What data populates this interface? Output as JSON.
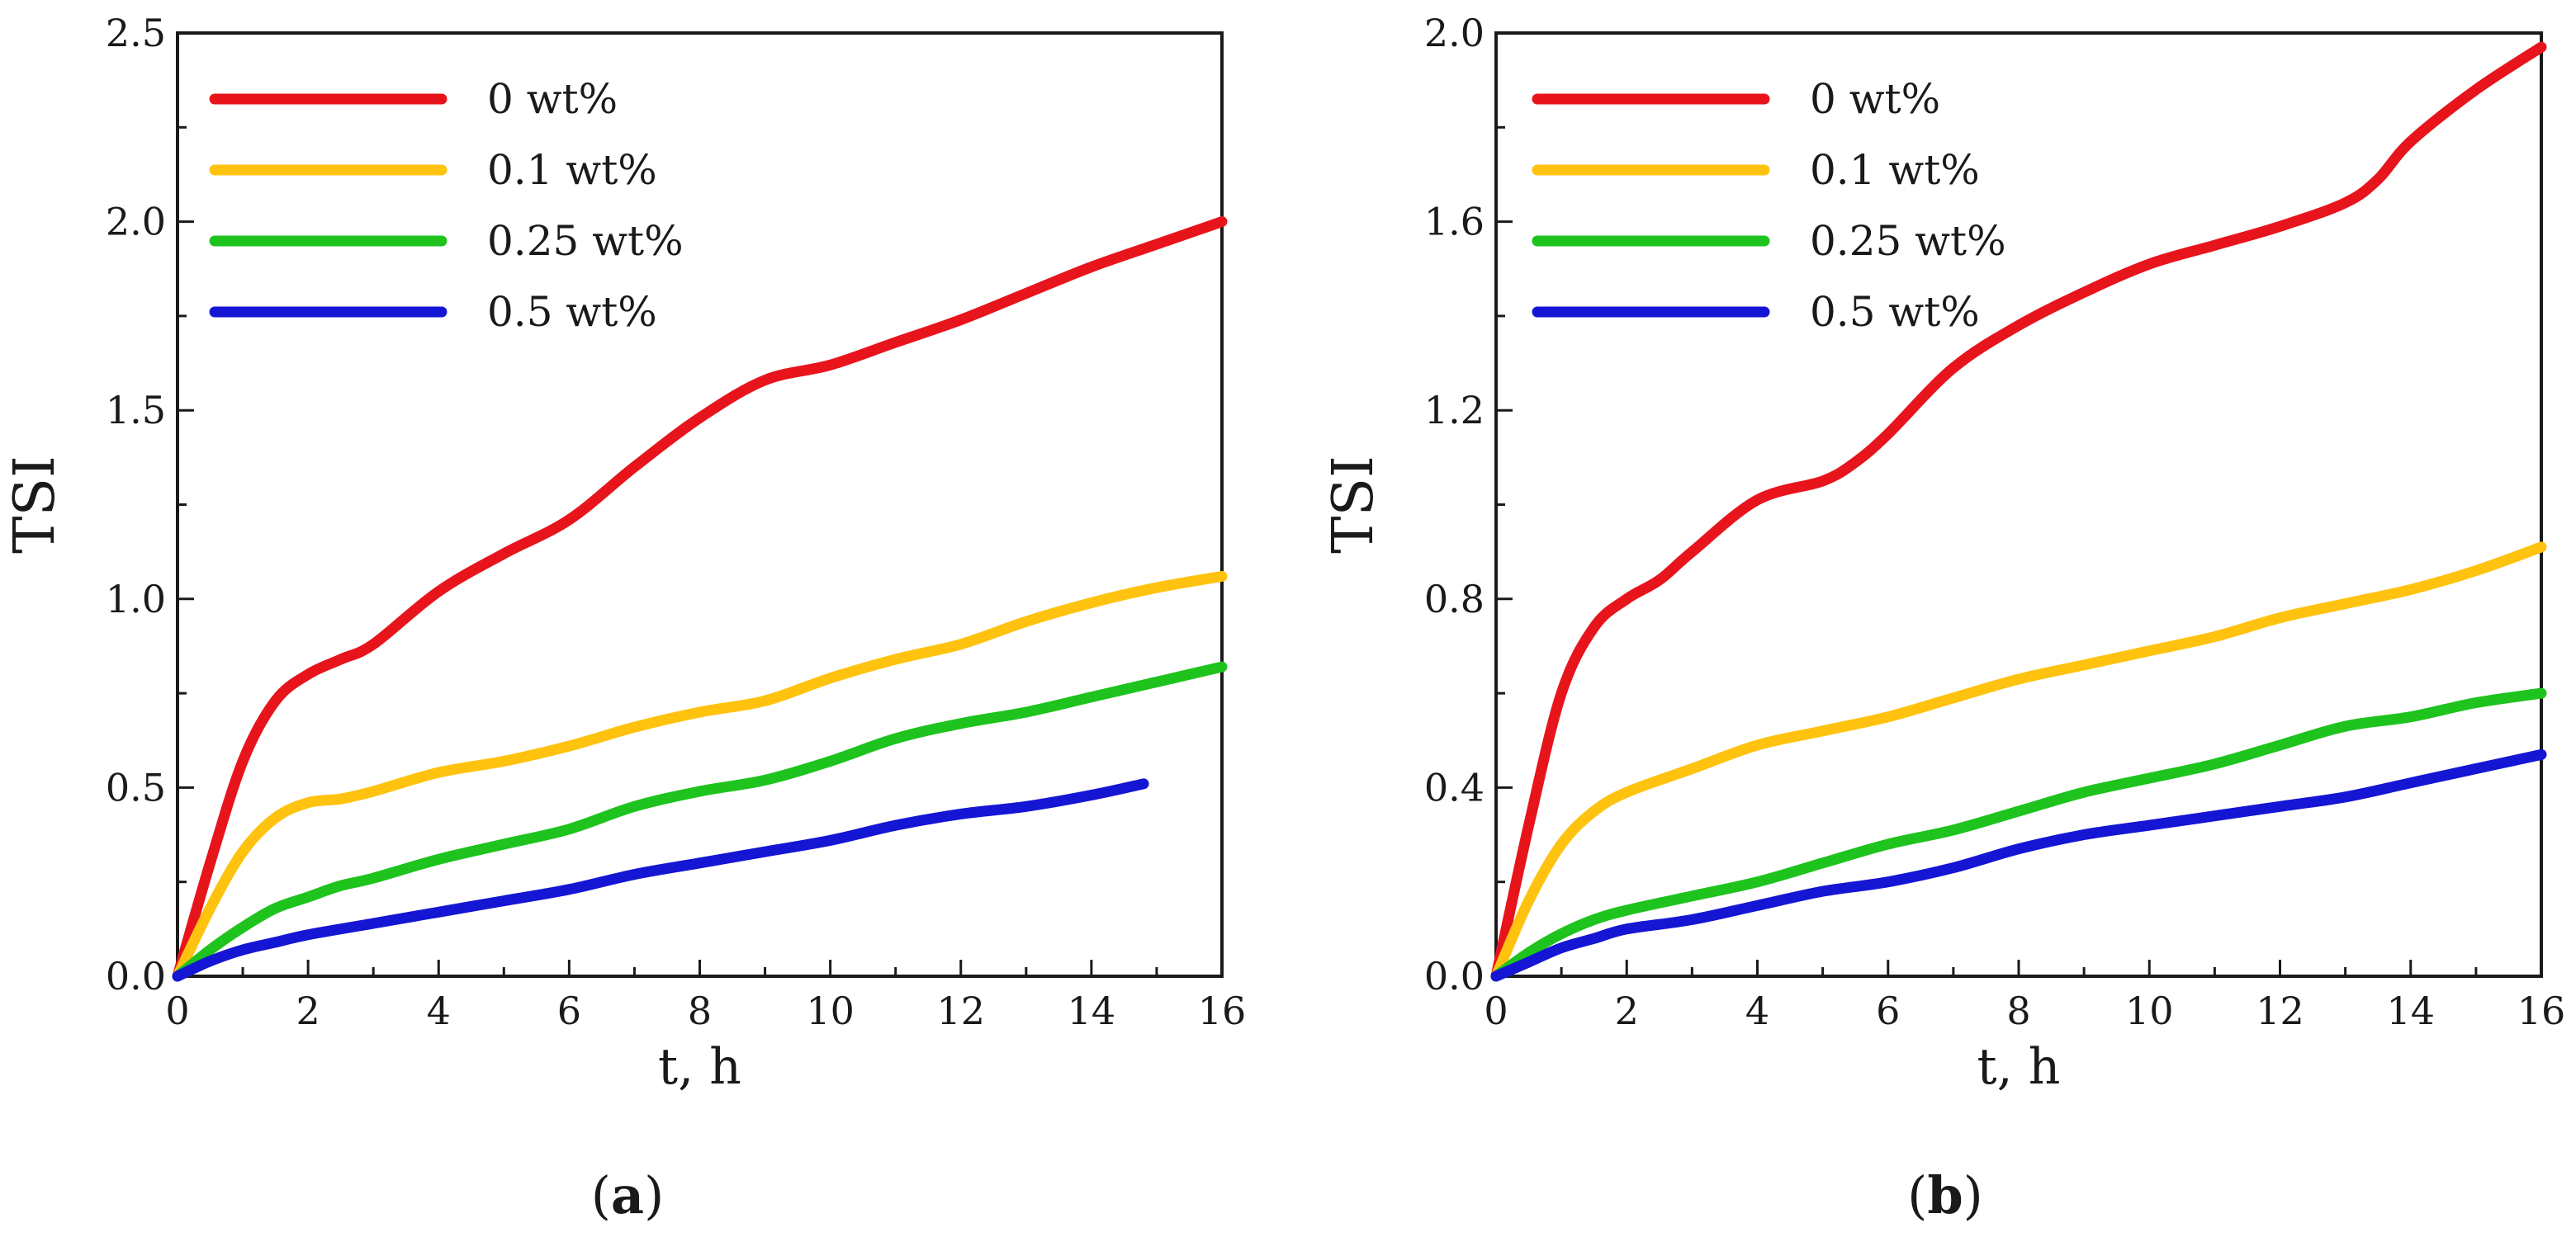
{
  "chart_data": [
    {
      "type": "line",
      "panel_label": "a",
      "xlabel": "t, h",
      "ylabel": "TSI",
      "xlim": [
        0,
        16
      ],
      "ylim": [
        0,
        2.5
      ],
      "xticks": [
        0,
        2,
        4,
        6,
        8,
        10,
        12,
        14,
        16
      ],
      "yticks": [
        "0.0",
        "0.5",
        "1.0",
        "1.5",
        "2.0",
        "2.5"
      ],
      "legend_position": "top-left",
      "series": [
        {
          "name": "0 wt%",
          "color": "#e8141c",
          "x": [
            0,
            0.5,
            1,
            1.5,
            2,
            2.5,
            3,
            4,
            5,
            6,
            7,
            8,
            9,
            10,
            11,
            12,
            13,
            14,
            15,
            16
          ],
          "y": [
            0,
            0.3,
            0.57,
            0.73,
            0.8,
            0.84,
            0.88,
            1.02,
            1.12,
            1.21,
            1.35,
            1.48,
            1.58,
            1.62,
            1.68,
            1.74,
            1.81,
            1.88,
            1.94,
            2.0
          ]
        },
        {
          "name": "0.1 wt%",
          "color": "#ffc20e",
          "x": [
            0,
            0.5,
            1,
            1.5,
            2,
            2.5,
            3,
            4,
            5,
            6,
            7,
            8,
            9,
            10,
            11,
            12,
            13,
            14,
            15,
            16
          ],
          "y": [
            0,
            0.18,
            0.33,
            0.42,
            0.46,
            0.47,
            0.49,
            0.54,
            0.57,
            0.61,
            0.66,
            0.7,
            0.73,
            0.79,
            0.84,
            0.88,
            0.94,
            0.99,
            1.03,
            1.06
          ]
        },
        {
          "name": "0.25 wt%",
          "color": "#1ec31e",
          "x": [
            0,
            0.5,
            1,
            1.5,
            2,
            2.5,
            3,
            4,
            5,
            6,
            7,
            8,
            9,
            10,
            11,
            12,
            13,
            14,
            15,
            16
          ],
          "y": [
            0,
            0.07,
            0.13,
            0.18,
            0.21,
            0.24,
            0.26,
            0.31,
            0.35,
            0.39,
            0.45,
            0.49,
            0.52,
            0.57,
            0.63,
            0.67,
            0.7,
            0.74,
            0.78,
            0.82
          ]
        },
        {
          "name": "0.5 wt%",
          "color": "#1515d4",
          "x": [
            0,
            0.5,
            1,
            1.5,
            2,
            3,
            4,
            5,
            6,
            7,
            8,
            9,
            10,
            11,
            12,
            13,
            14,
            14.8
          ],
          "y": [
            0,
            0.04,
            0.07,
            0.09,
            0.11,
            0.14,
            0.17,
            0.2,
            0.23,
            0.27,
            0.3,
            0.33,
            0.36,
            0.4,
            0.43,
            0.45,
            0.48,
            0.51
          ]
        }
      ]
    },
    {
      "type": "line",
      "panel_label": "b",
      "xlabel": "t, h",
      "ylabel": "TSI",
      "xlim": [
        0,
        16
      ],
      "ylim": [
        0,
        2.0
      ],
      "xticks": [
        0,
        2,
        4,
        6,
        8,
        10,
        12,
        14,
        16
      ],
      "yticks": [
        "0.0",
        "0.4",
        "0.8",
        "1.2",
        "1.6",
        "2.0"
      ],
      "legend_position": "top-left",
      "series": [
        {
          "name": "0 wt%",
          "color": "#e8141c",
          "x": [
            0,
            0.5,
            1,
            1.5,
            2,
            2.5,
            3,
            4,
            5,
            5.5,
            6,
            7,
            8,
            9,
            10,
            11,
            12,
            13,
            13.5,
            14,
            15,
            16
          ],
          "y": [
            0,
            0.32,
            0.6,
            0.74,
            0.8,
            0.84,
            0.9,
            1.01,
            1.05,
            1.09,
            1.15,
            1.29,
            1.38,
            1.45,
            1.51,
            1.55,
            1.59,
            1.64,
            1.69,
            1.77,
            1.88,
            1.97
          ]
        },
        {
          "name": "0.1 wt%",
          "color": "#ffc20e",
          "x": [
            0,
            0.5,
            1,
            1.5,
            2,
            3,
            4,
            5,
            6,
            7,
            8,
            9,
            10,
            11,
            12,
            13,
            14,
            15,
            16
          ],
          "y": [
            0,
            0.16,
            0.28,
            0.35,
            0.39,
            0.44,
            0.49,
            0.52,
            0.55,
            0.59,
            0.63,
            0.66,
            0.69,
            0.72,
            0.76,
            0.79,
            0.82,
            0.86,
            0.91
          ]
        },
        {
          "name": "0.25 wt%",
          "color": "#1ec31e",
          "x": [
            0,
            0.5,
            1,
            1.5,
            2,
            3,
            4,
            5,
            6,
            7,
            8,
            9,
            10,
            11,
            12,
            13,
            14,
            15,
            16
          ],
          "y": [
            0,
            0.05,
            0.09,
            0.12,
            0.14,
            0.17,
            0.2,
            0.24,
            0.28,
            0.31,
            0.35,
            0.39,
            0.42,
            0.45,
            0.49,
            0.53,
            0.55,
            0.58,
            0.6
          ]
        },
        {
          "name": "0.5 wt%",
          "color": "#1515d4",
          "x": [
            0,
            0.5,
            1,
            1.5,
            2,
            3,
            4,
            5,
            6,
            7,
            8,
            9,
            10,
            11,
            12,
            13,
            14,
            15,
            16
          ],
          "y": [
            0,
            0.03,
            0.06,
            0.08,
            0.1,
            0.12,
            0.15,
            0.18,
            0.2,
            0.23,
            0.27,
            0.3,
            0.32,
            0.34,
            0.36,
            0.38,
            0.41,
            0.44,
            0.47
          ]
        }
      ]
    }
  ]
}
